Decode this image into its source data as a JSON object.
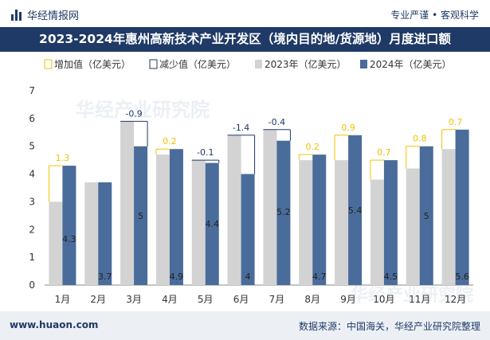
{
  "header": {
    "brand": "华经情报网",
    "slogan": "专业严谨 • 客观科学"
  },
  "title": "2023-2024年惠州高新技术产业开发区（境内目的地/货源地）月度进口额",
  "footer": {
    "url": "www.huaon.com",
    "source": "数据来源：中国海关，华经产业研究院整理"
  },
  "watermark": "华经产业研究院",
  "colors": {
    "increase": "#f2c200",
    "decrease": "#1f3a66",
    "y2023": "#d3d3d3",
    "y2024": "#4a6c9b",
    "title_bg": "#1f3a66"
  },
  "chart_data": {
    "type": "bar",
    "categories": [
      "1月",
      "2月",
      "3月",
      "4月",
      "5月",
      "6月",
      "7月",
      "8月",
      "9月",
      "10月",
      "11月",
      "12月"
    ],
    "series": [
      {
        "name": "2023年（亿美元）",
        "values": [
          3.0,
          3.7,
          5.9,
          4.7,
          4.5,
          5.4,
          5.6,
          4.5,
          4.5,
          3.8,
          4.2,
          4.9
        ]
      },
      {
        "name": "2024年（亿美元）",
        "values": [
          4.3,
          3.7,
          5.0,
          4.9,
          4.4,
          4.0,
          5.2,
          4.7,
          5.4,
          4.5,
          5.0,
          5.6
        ]
      }
    ],
    "change_labels": [
      "1.3",
      "",
      "-0.9",
      "0.2",
      "-0.1",
      "-1.4",
      "-0.4",
      "0.2",
      "0.9",
      "0.7",
      "0.8",
      "0.7"
    ],
    "value_labels_2024": [
      "4.3",
      "3.7",
      "5",
      "4.9",
      "4.4",
      "4",
      "5.2",
      "4.7",
      "5.4",
      "4.5",
      "5",
      "5.6"
    ],
    "legend": [
      "增加值（亿美元）",
      "减少值（亿美元）",
      "2023年（亿美元）",
      "2024年（亿美元）"
    ],
    "y_ticks": [
      "0",
      "1",
      "2",
      "3",
      "4",
      "5",
      "6",
      "7"
    ],
    "ylim": [
      0,
      7
    ],
    "grid": false,
    "legend_position": "top-left"
  }
}
